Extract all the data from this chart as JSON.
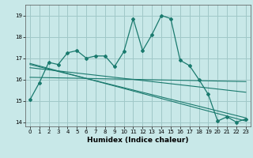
{
  "xlabel": "Humidex (Indice chaleur)",
  "background_color": "#c8e8e8",
  "grid_color": "#a0c8c8",
  "line_color": "#1a7a6e",
  "xlim": [
    -0.5,
    23.5
  ],
  "ylim": [
    13.8,
    19.5
  ],
  "yticks": [
    14,
    15,
    16,
    17,
    18,
    19
  ],
  "xticks": [
    0,
    1,
    2,
    3,
    4,
    5,
    6,
    7,
    8,
    9,
    10,
    11,
    12,
    13,
    14,
    15,
    16,
    17,
    18,
    19,
    20,
    21,
    22,
    23
  ],
  "main_x": [
    0,
    1,
    2,
    3,
    4,
    5,
    6,
    7,
    8,
    9,
    10,
    11,
    12,
    13,
    14,
    15,
    16,
    17,
    18,
    19,
    20,
    21,
    22,
    23
  ],
  "main_y": [
    15.05,
    15.85,
    16.8,
    16.7,
    17.25,
    17.35,
    17.0,
    17.1,
    17.1,
    16.6,
    17.3,
    18.85,
    17.35,
    18.1,
    19.0,
    18.85,
    16.9,
    16.65,
    16.0,
    15.3,
    14.05,
    14.25,
    14.0,
    14.15
  ],
  "lines": [
    {
      "x": [
        0,
        23
      ],
      "y": [
        16.7,
        14.2
      ]
    },
    {
      "x": [
        0,
        23
      ],
      "y": [
        16.75,
        14.05
      ]
    },
    {
      "x": [
        0,
        23
      ],
      "y": [
        16.55,
        15.4
      ]
    },
    {
      "x": [
        0,
        23
      ],
      "y": [
        16.1,
        15.9
      ]
    }
  ]
}
